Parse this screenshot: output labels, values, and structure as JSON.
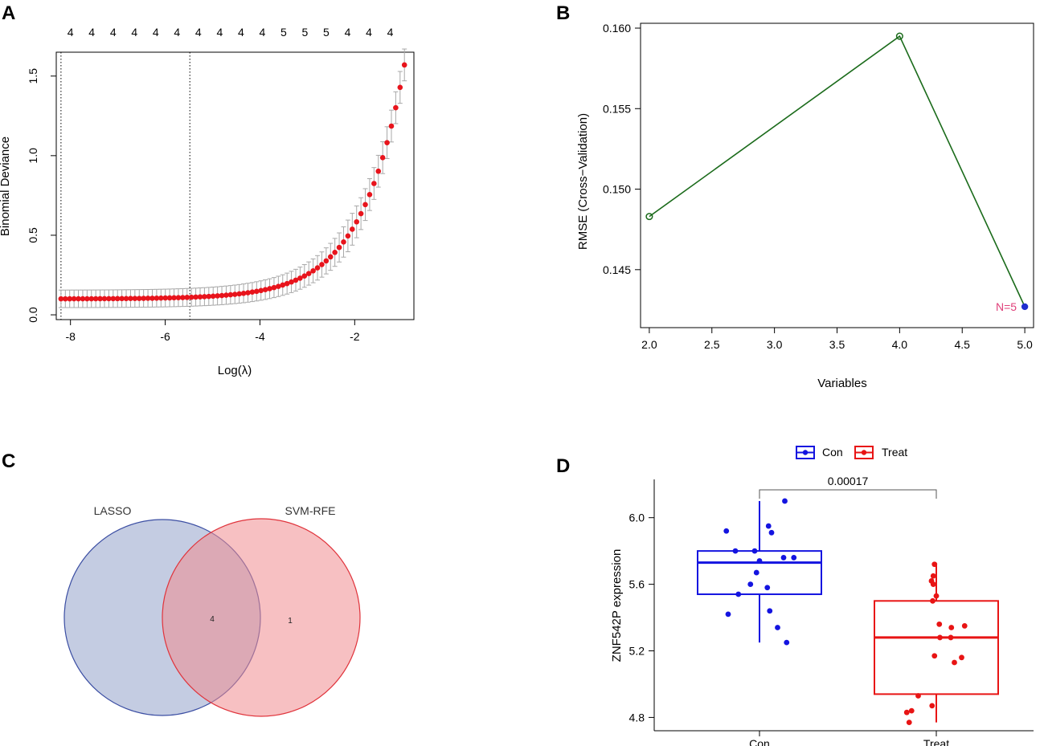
{
  "colors": {
    "lasso_point": "#e8141c",
    "lasso_err": "#a8a8a8",
    "rfe_line": "#1b6b1b",
    "rfe_best": "#1f2fcf",
    "rfe_best_label": "#e0407a",
    "venn_lasso_fill": "#8a99c6",
    "venn_lasso_stroke": "#3b4ea3",
    "venn_svm_fill": "#f08c90",
    "venn_svm_stroke": "#e0343c",
    "con": "#1414e0",
    "treat": "#e81414"
  },
  "chart_data": [
    {
      "panel": "A",
      "type": "scatter",
      "xlabel": "Log(λ)",
      "ylabel": "Binomial Deviance",
      "xlim": [
        -8.3,
        -0.75
      ],
      "ylim": [
        -0.03,
        1.65
      ],
      "xticks": [
        "-8",
        "-6",
        "-4",
        "-2"
      ],
      "xtick_values": [
        -8,
        -6,
        -4,
        -2
      ],
      "yticks": [
        "0.0",
        "0.5",
        "1.0",
        "1.5"
      ],
      "ytick_values": [
        0,
        0.5,
        1.0,
        1.5
      ],
      "top_counts": [
        "4",
        "4",
        "4",
        "4",
        "4",
        "4",
        "4",
        "4",
        "4",
        "4",
        "5",
        "5",
        "5",
        "4",
        "4",
        "4"
      ],
      "top_count_x": [
        -8.0,
        -7.55,
        -7.1,
        -6.65,
        -6.2,
        -5.75,
        -5.3,
        -4.85,
        -4.4,
        -3.95,
        -3.5,
        -3.05,
        -2.6,
        -2.15,
        -1.7,
        -1.25
      ],
      "vlines": [
        -8.2,
        -5.48
      ],
      "curve": {
        "x_start": -8.2,
        "x_end": -0.95,
        "n": 80,
        "base": 0.1,
        "amp": 1.47,
        "rate": 1.1
      }
    },
    {
      "panel": "B",
      "type": "line",
      "xlabel": "Variables",
      "ylabel": "RMSE (Cross−Validation)",
      "x": [
        2,
        4,
        5
      ],
      "y": [
        0.1483,
        0.1595,
        0.1427
      ],
      "xlim": [
        1.93,
        5.07
      ],
      "ylim": [
        0.1414,
        0.1603
      ],
      "xticks": [
        "2.0",
        "2.5",
        "3.0",
        "3.5",
        "4.0",
        "4.5",
        "5.0"
      ],
      "xtick_values": [
        2.0,
        2.5,
        3.0,
        3.5,
        4.0,
        4.5,
        5.0
      ],
      "yticks": [
        "0.145",
        "0.150",
        "0.155",
        "0.160"
      ],
      "ytick_values": [
        0.145,
        0.15,
        0.155,
        0.16
      ],
      "best_label": "N=5"
    },
    {
      "panel": "C",
      "type": "venn",
      "sets": [
        "LASSO",
        "SVM-RFE"
      ],
      "counts": {
        "lasso_only": "",
        "both": "4",
        "svm_only": "1"
      }
    },
    {
      "panel": "D",
      "type": "boxplot",
      "ylabel": "ZNF542P expression",
      "categories": [
        "Con",
        "Treat"
      ],
      "ylim": [
        4.72,
        6.23
      ],
      "yticks": [
        "4.8",
        "5.2",
        "5.6",
        "6.0"
      ],
      "ytick_values": [
        4.8,
        5.2,
        5.6,
        6.0
      ],
      "legend": [
        "Con",
        "Treat"
      ],
      "pvalue": "0.00017",
      "boxes": [
        {
          "name": "Con",
          "q1": 5.54,
          "median": 5.73,
          "q3": 5.8,
          "whisker_low": 5.25,
          "whisker_high": 6.1
        },
        {
          "name": "Treat",
          "q1": 4.94,
          "median": 5.28,
          "q3": 5.5,
          "whisker_low": 4.77,
          "whisker_high": 5.72
        }
      ],
      "points": [
        {
          "group": "Con",
          "jitter": 0.42,
          "value": 6.1
        },
        {
          "group": "Con",
          "jitter": 0.15,
          "value": 5.95
        },
        {
          "group": "Con",
          "jitter": 0.2,
          "value": 5.91
        },
        {
          "group": "Con",
          "jitter": -0.55,
          "value": 5.92
        },
        {
          "group": "Con",
          "jitter": -0.4,
          "value": 5.8
        },
        {
          "group": "Con",
          "jitter": -0.08,
          "value": 5.8
        },
        {
          "group": "Con",
          "jitter": 0.4,
          "value": 5.76
        },
        {
          "group": "Con",
          "jitter": 0.57,
          "value": 5.76
        },
        {
          "group": "Con",
          "jitter": 0.0,
          "value": 5.74
        },
        {
          "group": "Con",
          "jitter": -0.05,
          "value": 5.67
        },
        {
          "group": "Con",
          "jitter": -0.15,
          "value": 5.6
        },
        {
          "group": "Con",
          "jitter": 0.13,
          "value": 5.58
        },
        {
          "group": "Con",
          "jitter": -0.35,
          "value": 5.54
        },
        {
          "group": "Con",
          "jitter": 0.17,
          "value": 5.44
        },
        {
          "group": "Con",
          "jitter": -0.52,
          "value": 5.42
        },
        {
          "group": "Con",
          "jitter": 0.3,
          "value": 5.34
        },
        {
          "group": "Con",
          "jitter": 0.45,
          "value": 5.25
        },
        {
          "group": "Treat",
          "jitter": -0.03,
          "value": 5.72
        },
        {
          "group": "Treat",
          "jitter": -0.05,
          "value": 5.65
        },
        {
          "group": "Treat",
          "jitter": -0.08,
          "value": 5.62
        },
        {
          "group": "Treat",
          "jitter": -0.05,
          "value": 5.6
        },
        {
          "group": "Treat",
          "jitter": 0.0,
          "value": 5.53
        },
        {
          "group": "Treat",
          "jitter": -0.06,
          "value": 5.5
        },
        {
          "group": "Treat",
          "jitter": 0.05,
          "value": 5.36
        },
        {
          "group": "Treat",
          "jitter": 0.47,
          "value": 5.35
        },
        {
          "group": "Treat",
          "jitter": 0.25,
          "value": 5.34
        },
        {
          "group": "Treat",
          "jitter": 0.06,
          "value": 5.28
        },
        {
          "group": "Treat",
          "jitter": 0.24,
          "value": 5.28
        },
        {
          "group": "Treat",
          "jitter": -0.03,
          "value": 5.17
        },
        {
          "group": "Treat",
          "jitter": 0.42,
          "value": 5.16
        },
        {
          "group": "Treat",
          "jitter": 0.3,
          "value": 5.13
        },
        {
          "group": "Treat",
          "jitter": -0.3,
          "value": 4.93
        },
        {
          "group": "Treat",
          "jitter": -0.07,
          "value": 4.87
        },
        {
          "group": "Treat",
          "jitter": -0.49,
          "value": 4.83
        },
        {
          "group": "Treat",
          "jitter": -0.41,
          "value": 4.84
        },
        {
          "group": "Treat",
          "jitter": -0.45,
          "value": 4.77
        }
      ]
    }
  ]
}
